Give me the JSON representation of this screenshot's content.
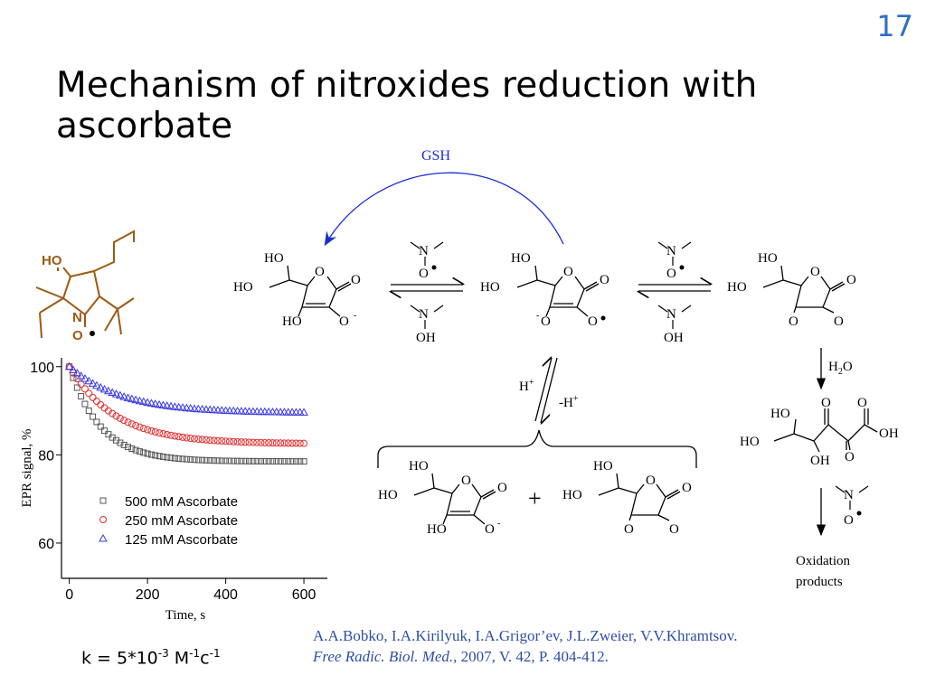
{
  "slide": {
    "page_number": "17",
    "title": "Mechanism of nitroxides reduction with ascorbate"
  },
  "scheme": {
    "gsh_label": "GSH",
    "h_plus": "H",
    "minus_h_plus": "-H",
    "plus_sign": "+",
    "water": "H",
    "oxidation_products": [
      "Oxidation",
      "products"
    ],
    "nitroxide_labels": {
      "ho": "HO",
      "n": "N",
      "o": "O"
    },
    "atoms": {
      "ho": "HO",
      "o": "O",
      "oh": "OH",
      "n": "N"
    }
  },
  "chart_data": {
    "type": "scatter",
    "xlabel": "Time, s",
    "ylabel": "EPR signal, %",
    "xlim": [
      -20,
      660
    ],
    "ylim": [
      52,
      102
    ],
    "xticks": [
      0,
      200,
      400,
      600
    ],
    "yticks": [
      60,
      80,
      100
    ],
    "legend_position": "bottom-left",
    "series": [
      {
        "name": "500 mM Ascorbate",
        "marker": "square",
        "color": "#555555",
        "k": 0.0125,
        "plateau": 78.5,
        "start": 100
      },
      {
        "name": "250 mM Ascorbate",
        "marker": "circle",
        "color": "#e03030",
        "k": 0.0085,
        "plateau": 82.5,
        "start": 100
      },
      {
        "name": "125 mM Ascorbate",
        "marker": "triangle",
        "color": "#3a3ae0",
        "k": 0.0075,
        "plateau": 89.5,
        "start": 100
      }
    ]
  },
  "rate_constant": {
    "prefix": "k = 5*10",
    "exp1": "-3",
    "mid": " M",
    "exp2": "-1",
    "unit": "c",
    "exp3": "-1"
  },
  "reference": {
    "authors": "A.A.Bobko, I.A.Kirilyuk, I.A.Grigor’ev, J.L.Zweier, V.V.Khramtsov.",
    "journal": "Free Radic. Biol. Med.",
    "details": ", 2007, V. 42, P. 404-412."
  }
}
